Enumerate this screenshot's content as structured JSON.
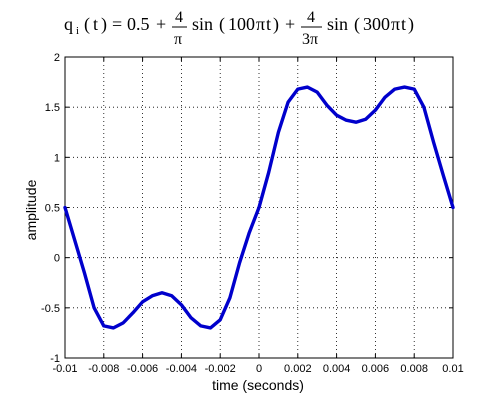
{
  "chart_data": {
    "type": "line",
    "title": {
      "formula_parts": [
        "q",
        "i",
        "(",
        "t",
        ")",
        "=",
        "0.5",
        "+",
        "4",
        "π",
        "sin",
        "(",
        "100",
        "π",
        "t",
        ")",
        "+",
        "4",
        "3π",
        "sin",
        "(",
        "300",
        "π",
        "t",
        ")"
      ]
    },
    "xlabel": "time (seconds)",
    "ylabel": "amplitude",
    "xlim": [
      -0.01,
      0.01
    ],
    "ylim": [
      -1,
      2
    ],
    "x_ticks": [
      -0.01,
      -0.008,
      -0.006,
      -0.004,
      -0.002,
      0,
      0.002,
      0.004,
      0.006,
      0.008,
      0.01
    ],
    "x_tick_labels": [
      "-0.01",
      "-0.008",
      "-0.006",
      "-0.004",
      "-0.002",
      "0",
      "0.002",
      "0.004",
      "0.006",
      "0.008",
      "0.01"
    ],
    "y_ticks": [
      -1,
      -0.5,
      0,
      0.5,
      1,
      1.5,
      2
    ],
    "y_tick_labels": [
      "-1",
      "-0.5",
      "0",
      "0.5",
      "1",
      "1.5",
      "2"
    ],
    "grid": true,
    "series": [
      {
        "color": "#0000cc",
        "x": [
          -0.01,
          -0.009,
          -0.0085,
          -0.008,
          -0.0075,
          -0.007,
          -0.0065,
          -0.006,
          -0.0055,
          -0.005,
          -0.0045,
          -0.004,
          -0.0035,
          -0.003,
          -0.0025,
          -0.002,
          -0.0015,
          -0.001,
          -0.0005,
          0,
          0.0005,
          0.001,
          0.0015,
          0.002,
          0.0025,
          0.003,
          0.0035,
          0.004,
          0.0045,
          0.005,
          0.0055,
          0.006,
          0.0065,
          0.007,
          0.0075,
          0.008,
          0.0085,
          0.009,
          0.0095,
          0.01
        ],
        "y": [
          0.5,
          -0.15,
          -0.5,
          -0.68,
          -0.7,
          -0.65,
          -0.55,
          -0.44,
          -0.38,
          -0.35,
          -0.38,
          -0.47,
          -0.6,
          -0.68,
          -0.7,
          -0.62,
          -0.4,
          -0.05,
          0.25,
          0.5,
          0.85,
          1.25,
          1.55,
          1.68,
          1.7,
          1.65,
          1.52,
          1.42,
          1.37,
          1.35,
          1.38,
          1.47,
          1.6,
          1.68,
          1.7,
          1.68,
          1.5,
          1.15,
          0.82,
          0.5
        ]
      }
    ]
  }
}
